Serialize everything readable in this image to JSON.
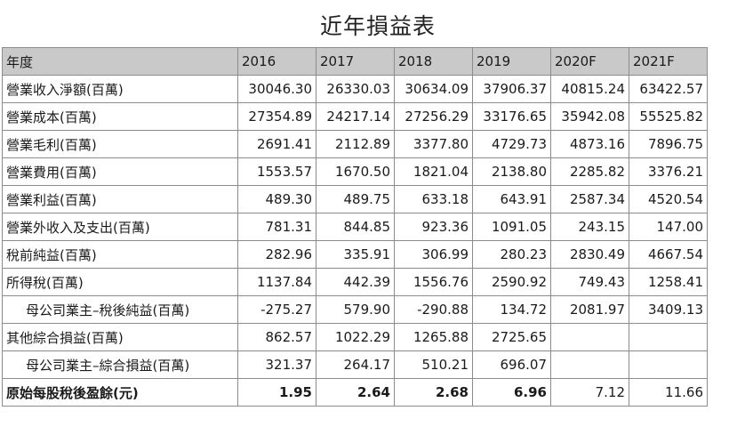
{
  "title": "近年損益表",
  "chart_data": {
    "type": "table",
    "title": "近年損益表",
    "columns": [
      "年度",
      "2016",
      "2017",
      "2018",
      "2019",
      "2020F",
      "2021F"
    ],
    "rows": [
      {
        "label": "營業收入淨額(百萬)",
        "values": [
          "30046.30",
          "26330.03",
          "30634.09",
          "37906.37",
          "40815.24",
          "63422.57"
        ]
      },
      {
        "label": "營業成本(百萬)",
        "values": [
          "27354.89",
          "24217.14",
          "27256.29",
          "33176.65",
          "35942.08",
          "55525.82"
        ]
      },
      {
        "label": "營業毛利(百萬)",
        "values": [
          "2691.41",
          "2112.89",
          "3377.80",
          "4729.73",
          "4873.16",
          "7896.75"
        ]
      },
      {
        "label": "營業費用(百萬)",
        "values": [
          "1553.57",
          "1670.50",
          "1821.04",
          "2138.80",
          "2285.82",
          "3376.21"
        ]
      },
      {
        "label": "營業利益(百萬)",
        "values": [
          "489.30",
          "489.75",
          "633.18",
          "643.91",
          "2587.34",
          "4520.54"
        ]
      },
      {
        "label": "營業外收入及支出(百萬)",
        "values": [
          "781.31",
          "844.85",
          "923.36",
          "1091.05",
          "243.15",
          "147.00"
        ]
      },
      {
        "label": "稅前純益(百萬)",
        "values": [
          "282.96",
          "335.91",
          "306.99",
          "280.23",
          "2830.49",
          "4667.54"
        ]
      },
      {
        "label": "所得稅(百萬)",
        "values": [
          "1137.84",
          "442.39",
          "1556.76",
          "2590.92",
          "749.43",
          "1258.41"
        ]
      },
      {
        "label": "母公司業主–稅後純益(百萬)",
        "values": [
          "-275.27",
          "579.90",
          "-290.88",
          "134.72",
          "2081.97",
          "3409.13"
        ]
      },
      {
        "label": "其他綜合損益(百萬)",
        "values": [
          "862.57",
          "1022.29",
          "1265.88",
          "2725.65",
          "",
          ""
        ]
      },
      {
        "label": "母公司業主–綜合損益(百萬)",
        "values": [
          "321.37",
          "264.17",
          "510.21",
          "696.07",
          "",
          ""
        ]
      },
      {
        "label": "原始每股稅後盈餘(元)",
        "values": [
          "1.95",
          "2.64",
          "2.68",
          "6.96",
          "7.12",
          "11.66"
        ]
      }
    ],
    "header_color": "#c9c9c9",
    "border_color": "#8c8c8c"
  }
}
